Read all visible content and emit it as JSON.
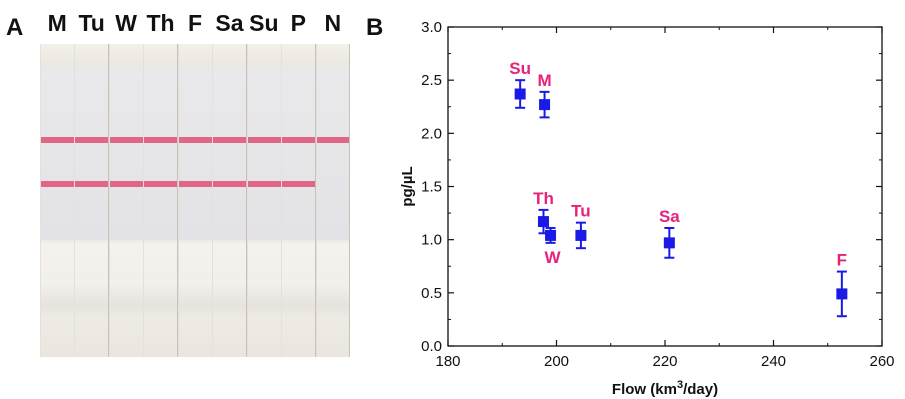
{
  "panel_a": {
    "label": "A",
    "strips": [
      {
        "label": "M",
        "control_line": true,
        "test_line": true
      },
      {
        "label": "Tu",
        "control_line": true,
        "test_line": true
      },
      {
        "label": "W",
        "control_line": true,
        "test_line": true
      },
      {
        "label": "Th",
        "control_line": true,
        "test_line": true
      },
      {
        "label": "F",
        "control_line": true,
        "test_line": true
      },
      {
        "label": "Sa",
        "control_line": true,
        "test_line": true
      },
      {
        "label": "Su",
        "control_line": true,
        "test_line": true
      },
      {
        "label": "P",
        "control_line": true,
        "test_line": true
      },
      {
        "label": "N",
        "control_line": true,
        "test_line": false
      }
    ],
    "line_color": "#e0577a"
  },
  "panel_b": {
    "label": "B"
  },
  "chart_data": {
    "type": "scatter",
    "title": "",
    "xlabel": "Flow (km",
    "xlabel_sup": "3",
    "xlabel_suffix": "/day)",
    "ylabel": "pg/µL",
    "xlim": [
      180,
      260
    ],
    "ylim": [
      0.0,
      3.0
    ],
    "xticks": [
      180,
      200,
      220,
      240,
      260
    ],
    "xtick_labels": [
      "180",
      "200",
      "220",
      "240",
      "260"
    ],
    "yticks": [
      0.0,
      0.5,
      1.0,
      1.5,
      2.0,
      2.5,
      3.0
    ],
    "ytick_labels": [
      "0.0",
      "0.5",
      "1.0",
      "1.5",
      "2.0",
      "2.5",
      "3.0"
    ],
    "grid": false,
    "marker_color": "#1a1ae6",
    "label_color": "#e8217a",
    "series": [
      {
        "points": [
          {
            "label": "Su",
            "x": 193.3,
            "y": 2.37,
            "err": 0.13,
            "label_pos": "above"
          },
          {
            "label": "M",
            "x": 197.8,
            "y": 2.27,
            "err": 0.12,
            "label_pos": "above"
          },
          {
            "label": "Th",
            "x": 197.6,
            "y": 1.17,
            "err": 0.11,
            "label_pos": "above"
          },
          {
            "label": "W",
            "x": 198.9,
            "y": 1.04,
            "err": 0.07,
            "label_pos": "below"
          },
          {
            "label": "Tu",
            "x": 204.5,
            "y": 1.04,
            "err": 0.12,
            "label_pos": "above"
          },
          {
            "label": "Sa",
            "x": 220.8,
            "y": 0.97,
            "err": 0.14,
            "label_pos": "above"
          },
          {
            "label": "F",
            "x": 252.6,
            "y": 0.49,
            "err": 0.21,
            "label_pos": "above"
          }
        ]
      }
    ]
  }
}
